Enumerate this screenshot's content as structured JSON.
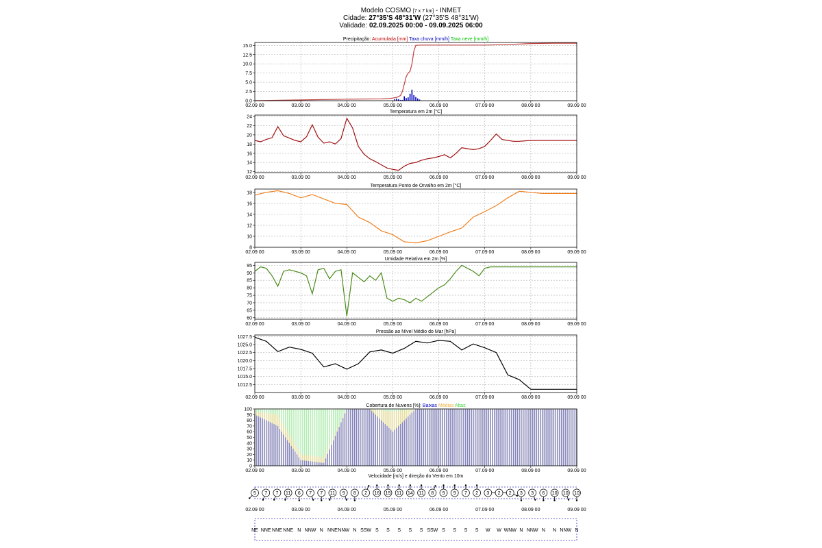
{
  "header": {
    "line1_prefix": "Modelo COSMO",
    "line1_grid": "[7 x 7 km]",
    "line1_suffix": "- INMET",
    "line2_label": "Cidade:",
    "line2_coords": "27°35'S 48°31'W",
    "line2_paren": "(27°35'S 48°31'W)",
    "line3_label": "Validade:",
    "line3_range": "02.09.2025 00:00 - 09.09.2025 06:00"
  },
  "x_tick_labels": [
    "02.09 00",
    "03.09 00",
    "04.09 00",
    "05.09 00",
    "06.09 00",
    "07.09 00",
    "08.09 00",
    "09.09 00"
  ],
  "colors": {
    "frame": "#000000",
    "grid": "#b0b0b0",
    "dash_box": "#3030c0"
  },
  "chart_data": [
    {
      "id": "precip",
      "type": "line",
      "title_parts": [
        {
          "text": "Precipitação:",
          "color": "#000000"
        },
        {
          "text": "Acumulada [mm]",
          "color": "#c00000"
        },
        {
          "text": "Taxa chuva [mm/h]",
          "color": "#0000c0"
        },
        {
          "text": "Taxa neve [mm/h]",
          "color": "#00c000"
        }
      ],
      "ylim": [
        0,
        15.8
      ],
      "yticks": [
        0.0,
        2.5,
        5.0,
        7.5,
        10.0,
        12.5,
        15.0
      ],
      "ytick_labels": [
        "0.0",
        "2.5",
        "5.0",
        "7.5",
        "10.0",
        "12.5",
        "15.0"
      ],
      "series": [
        {
          "name": "Acumulada [mm]",
          "kind": "line",
          "color": "#c04040",
          "x": [
            0,
            24,
            48,
            66,
            70,
            72,
            74,
            76,
            77,
            78,
            79,
            80,
            81,
            82,
            83,
            84,
            86,
            96,
            120,
            130,
            144,
            156,
            168
          ],
          "y": [
            0,
            0.2,
            0.4,
            0.5,
            0.6,
            0.7,
            0.9,
            1.4,
            2.5,
            4.5,
            6.5,
            7.5,
            8.0,
            10.0,
            13.5,
            15.0,
            15.1,
            15.1,
            15.1,
            15.2,
            15.5,
            15.6,
            15.6
          ]
        },
        {
          "name": "Taxa chuva [mm/h]",
          "kind": "bars",
          "color": "#0000c0",
          "x": [
            73,
            74,
            75,
            76,
            77,
            78,
            79,
            80,
            81,
            82,
            83,
            84,
            85,
            86,
            140,
            145
          ],
          "y": [
            0.4,
            0.6,
            0.4,
            0.2,
            0.2,
            1.2,
            0.7,
            0.9,
            1.9,
            3.0,
            1.5,
            1.0,
            0.6,
            0.3,
            0.1,
            0.1
          ]
        }
      ]
    },
    {
      "id": "temp",
      "type": "line",
      "title_parts": [
        {
          "text": "Temperatura em 2m [°C]",
          "color": "#000000"
        }
      ],
      "ylim": [
        11.8,
        24.3
      ],
      "yticks": [
        12,
        14,
        16,
        18,
        20,
        22,
        24
      ],
      "ytick_labels": [
        "12",
        "14",
        "16",
        "18",
        "20",
        "22",
        "24"
      ],
      "series": [
        {
          "name": "Temperatura",
          "kind": "line",
          "color": "#a01010",
          "x": [
            0,
            3,
            6,
            9,
            12,
            15,
            18,
            21,
            24,
            27,
            30,
            33,
            36,
            39,
            42,
            45,
            48,
            51,
            54,
            57,
            60,
            63,
            66,
            69,
            72,
            75,
            78,
            81,
            84,
            87,
            90,
            93,
            96,
            99,
            102,
            105,
            108,
            111,
            114,
            117,
            120,
            123,
            126,
            129,
            132,
            135,
            138,
            141,
            144,
            147,
            150,
            153,
            156,
            159,
            162,
            165,
            168
          ],
          "y": [
            18.8,
            18.5,
            19.0,
            19.4,
            21.8,
            19.8,
            19.3,
            18.8,
            18.5,
            19.6,
            22.2,
            19.5,
            18.2,
            18.5,
            18.0,
            19.2,
            23.6,
            21.5,
            17.5,
            15.8,
            14.8,
            14.2,
            13.5,
            12.8,
            12.5,
            12.3,
            13.2,
            13.8,
            14.0,
            14.5,
            14.8,
            15.0,
            15.3,
            15.7,
            15.0,
            16.0,
            17.2,
            17.0,
            16.8,
            17.0,
            17.5,
            18.8,
            20.2,
            19.0,
            18.8,
            18.6,
            18.6,
            18.7,
            18.8,
            18.8,
            18.8,
            18.8,
            18.8,
            18.8,
            18.8,
            18.8,
            18.8
          ]
        }
      ]
    },
    {
      "id": "dew",
      "type": "line",
      "title_parts": [
        {
          "text": "Temperatura Ponto de Orvalho em 2m [°C]",
          "color": "#000000"
        }
      ],
      "ylim": [
        8,
        18.6
      ],
      "yticks": [
        8,
        10,
        12,
        14,
        16,
        18
      ],
      "ytick_labels": [
        "8",
        "10",
        "12",
        "14",
        "16",
        "18"
      ],
      "series": [
        {
          "name": "Ponto de Orvalho",
          "kind": "line",
          "color": "#f08020",
          "x": [
            0,
            6,
            12,
            18,
            24,
            30,
            36,
            42,
            48,
            54,
            60,
            66,
            72,
            78,
            84,
            90,
            96,
            102,
            108,
            114,
            120,
            126,
            132,
            138,
            144,
            150,
            156,
            162,
            168
          ],
          "y": [
            17.5,
            18.0,
            18.3,
            17.8,
            17.0,
            17.6,
            16.8,
            16.0,
            15.8,
            13.5,
            12.5,
            11.0,
            10.3,
            9.0,
            8.8,
            9.2,
            10.0,
            10.8,
            11.5,
            13.5,
            14.5,
            15.6,
            17.0,
            18.2,
            18.0,
            17.8,
            17.8,
            17.8,
            17.8
          ]
        }
      ]
    },
    {
      "id": "rh",
      "type": "line",
      "title_parts": [
        {
          "text": "Umidade Relativa em 2m [%]",
          "color": "#000000"
        }
      ],
      "ylim": [
        59,
        97
      ],
      "yticks": [
        60,
        65,
        70,
        75,
        80,
        85,
        90,
        95
      ],
      "ytick_labels": [
        "60",
        "65",
        "70",
        "75",
        "80",
        "85",
        "90",
        "95"
      ],
      "series": [
        {
          "name": "Umidade Relativa",
          "kind": "line",
          "color": "#4a8a1a",
          "x": [
            0,
            3,
            6,
            9,
            12,
            15,
            18,
            21,
            24,
            27,
            30,
            33,
            36,
            39,
            42,
            45,
            48,
            51,
            54,
            57,
            60,
            63,
            66,
            69,
            72,
            75,
            78,
            81,
            84,
            87,
            90,
            93,
            96,
            99,
            102,
            105,
            108,
            111,
            114,
            117,
            120,
            123,
            126,
            129,
            132,
            135,
            138,
            141,
            144,
            147,
            150,
            153,
            156,
            159,
            162,
            165,
            168
          ],
          "y": [
            91,
            94,
            93,
            88,
            81,
            91,
            92,
            91,
            90,
            88,
            76,
            92,
            93,
            86,
            91,
            92,
            61,
            90,
            87,
            84,
            88,
            85,
            90,
            73,
            71,
            73,
            72,
            70,
            73,
            71,
            74,
            77,
            80,
            82,
            86,
            91,
            95,
            93,
            91,
            88,
            93,
            94,
            94,
            94,
            94,
            94,
            94,
            94,
            94,
            94,
            94,
            94,
            94,
            94,
            94,
            94,
            94
          ]
        }
      ]
    },
    {
      "id": "pressure",
      "type": "line",
      "title_parts": [
        {
          "text": "Pressão ao Nível Médio do Mar [hPa]",
          "color": "#000000"
        }
      ],
      "ylim": [
        1010,
        1028
      ],
      "yticks": [
        1012.5,
        1015.0,
        1017.5,
        1020.0,
        1022.5,
        1025.0,
        1027.5
      ],
      "ytick_labels": [
        "1012.5",
        "1015.0",
        "1017.5",
        "1020.0",
        "1022.5",
        "1025.0",
        "1027.5"
      ],
      "series": [
        {
          "name": "Pressão",
          "kind": "line",
          "color": "#000000",
          "x": [
            0,
            6,
            12,
            18,
            24,
            30,
            36,
            42,
            48,
            54,
            60,
            66,
            72,
            78,
            84,
            90,
            96,
            102,
            108,
            114,
            120,
            126,
            132,
            138,
            144,
            150,
            156,
            162,
            168
          ],
          "y": [
            1027.3,
            1026.0,
            1022.8,
            1024.2,
            1023.5,
            1022.3,
            1018.0,
            1019.0,
            1017.3,
            1019.0,
            1022.7,
            1023.3,
            1022.3,
            1023.8,
            1026.0,
            1025.5,
            1026.3,
            1026.0,
            1023.3,
            1025.2,
            1024.0,
            1022.5,
            1015.5,
            1014.0,
            1011.0,
            1011.0,
            1011.0,
            1011.0,
            1011.0
          ]
        }
      ]
    },
    {
      "id": "clouds",
      "type": "area",
      "title_parts": [
        {
          "text": "Cobertura de Nuvens [%]:",
          "color": "#000000"
        },
        {
          "text": "Baixas",
          "color": "#0000c0"
        },
        {
          "text": "Médias",
          "color": "#f0b040"
        },
        {
          "text": "Altas",
          "color": "#40d040"
        }
      ],
      "ylim": [
        0,
        100
      ],
      "yticks": [
        0,
        10,
        20,
        30,
        40,
        50,
        60,
        70,
        80,
        90,
        100
      ],
      "ytick_labels": [
        "0",
        "10",
        "20",
        "30",
        "40",
        "50",
        "60",
        "70",
        "80",
        "90",
        "100"
      ],
      "series": [
        {
          "name": "Altas",
          "kind": "bars",
          "color": "#a0e8a0",
          "x": [
            0,
            12,
            24,
            36,
            48,
            60,
            72,
            84,
            96,
            108,
            120,
            132,
            144,
            156,
            168
          ],
          "y": [
            100,
            100,
            100,
            100,
            100,
            100,
            100,
            100,
            100,
            100,
            100,
            100,
            100,
            100,
            100
          ]
        },
        {
          "name": "Médias",
          "kind": "bars",
          "color": "#f5d898",
          "x": [
            0,
            12,
            24,
            36,
            48,
            60,
            72,
            84,
            96,
            108,
            120,
            132,
            144,
            156,
            168
          ],
          "y": [
            95,
            90,
            20,
            15,
            100,
            100,
            95,
            100,
            100,
            100,
            100,
            100,
            100,
            100,
            100
          ]
        },
        {
          "name": "Baixas",
          "kind": "bars",
          "color": "#7070c8",
          "x": [
            0,
            12,
            24,
            36,
            48,
            60,
            72,
            84,
            96,
            108,
            120,
            132,
            144,
            156,
            168
          ],
          "y": [
            90,
            70,
            10,
            5,
            100,
            100,
            60,
            100,
            100,
            100,
            100,
            100,
            100,
            100,
            100
          ]
        }
      ]
    }
  ],
  "wind": {
    "title": "Velocidade [m/s] e direção do Vento em 10m",
    "speeds": [
      "5",
      "7",
      "7",
      "11",
      "6",
      "7",
      "7",
      "11",
      "9",
      "8",
      "2",
      "16",
      "15",
      "11",
      "14",
      "11",
      "8",
      "9",
      "9",
      "7",
      "2",
      "3",
      "2",
      "2",
      "3",
      "3",
      "6",
      "10",
      "10",
      "10"
    ],
    "directions": [
      "NE",
      "NNE",
      "NNE",
      "NNE",
      "N",
      "NNW",
      "N",
      "NNE",
      "NNW",
      "N",
      "SSW",
      "S",
      "S",
      "S",
      "S",
      "S",
      "SSW",
      "S",
      "S",
      "S",
      "S",
      "W",
      "W",
      "WNW",
      "N",
      "NNW",
      "N",
      "N",
      "NNW",
      "N"
    ]
  }
}
